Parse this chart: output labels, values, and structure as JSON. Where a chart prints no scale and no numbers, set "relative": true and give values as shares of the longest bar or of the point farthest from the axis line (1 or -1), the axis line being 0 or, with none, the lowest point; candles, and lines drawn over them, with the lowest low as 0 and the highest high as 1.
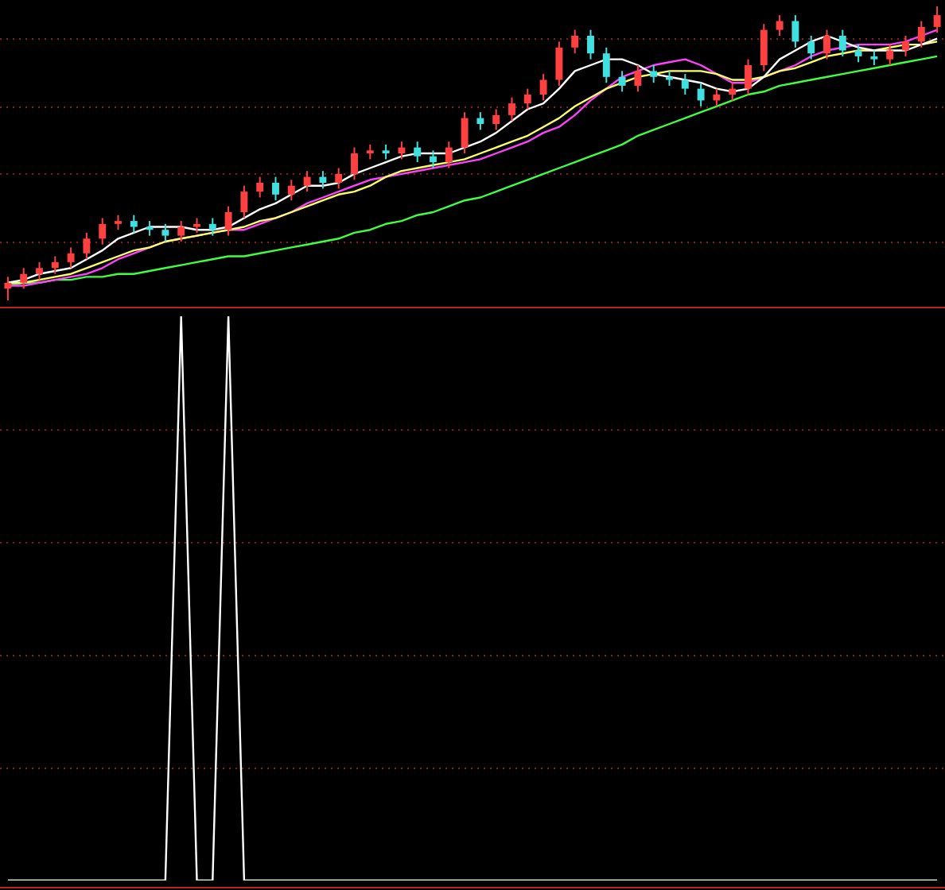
{
  "chart_data": [
    {
      "type": "candlestick",
      "relative": true,
      "ref_lines": [
        {
          "axis": "y",
          "value": 0.89,
          "color": "#8a1c1c",
          "line_style": "dotted"
        },
        {
          "axis": "y",
          "value": 0.66,
          "color": "#8a1c1c",
          "line_style": "dotted"
        },
        {
          "axis": "y",
          "value": 0.43,
          "color": "#8a1c1c",
          "line_style": "dotted"
        },
        {
          "axis": "y",
          "value": 0.2,
          "color": "#8a1c1c",
          "line_style": "dotted"
        }
      ],
      "categories": [
        null,
        null,
        null,
        null,
        null,
        null,
        null,
        null,
        null,
        null,
        null,
        null,
        null,
        null,
        null,
        null,
        null,
        null,
        null,
        null,
        null,
        null,
        null,
        null,
        null,
        null,
        null,
        null,
        null,
        null,
        null,
        null,
        null,
        null,
        null,
        null,
        null,
        null,
        null,
        null,
        null,
        null,
        null,
        null,
        null,
        null,
        null,
        null,
        null,
        null,
        null,
        null,
        null,
        null,
        null,
        null,
        null,
        null,
        null,
        null
      ],
      "ohlc": [
        [
          0.04,
          0.08,
          0,
          0.06
        ],
        [
          0.06,
          0.11,
          0.04,
          0.09
        ],
        [
          0.09,
          0.13,
          0.07,
          0.11
        ],
        [
          0.11,
          0.15,
          0.09,
          0.13
        ],
        [
          0.13,
          0.18,
          0.11,
          0.16
        ],
        [
          0.16,
          0.23,
          0.14,
          0.21
        ],
        [
          0.21,
          0.28,
          0.19,
          0.26
        ],
        [
          0.26,
          0.29,
          0.24,
          0.27
        ],
        [
          0.27,
          0.29,
          0.23,
          0.25
        ],
        [
          0.25,
          0.27,
          0.22,
          0.24
        ],
        [
          0.24,
          0.26,
          0.2,
          0.22
        ],
        [
          0.22,
          0.27,
          0.2,
          0.25
        ],
        [
          0.25,
          0.28,
          0.23,
          0.26
        ],
        [
          0.26,
          0.28,
          0.22,
          0.24
        ],
        [
          0.24,
          0.32,
          0.22,
          0.3
        ],
        [
          0.3,
          0.39,
          0.28,
          0.37
        ],
        [
          0.37,
          0.42,
          0.35,
          0.4
        ],
        [
          0.4,
          0.42,
          0.34,
          0.36
        ],
        [
          0.36,
          0.41,
          0.34,
          0.39
        ],
        [
          0.39,
          0.44,
          0.37,
          0.42
        ],
        [
          0.42,
          0.44,
          0.38,
          0.4
        ],
        [
          0.4,
          0.45,
          0.38,
          0.43
        ],
        [
          0.43,
          0.52,
          0.41,
          0.5
        ],
        [
          0.5,
          0.53,
          0.48,
          0.51
        ],
        [
          0.51,
          0.53,
          0.48,
          0.5
        ],
        [
          0.5,
          0.54,
          0.48,
          0.52
        ],
        [
          0.52,
          0.54,
          0.47,
          0.49
        ],
        [
          0.49,
          0.51,
          0.45,
          0.47
        ],
        [
          0.47,
          0.54,
          0.45,
          0.52
        ],
        [
          0.52,
          0.64,
          0.5,
          0.62
        ],
        [
          0.62,
          0.64,
          0.58,
          0.6
        ],
        [
          0.6,
          0.65,
          0.58,
          0.63
        ],
        [
          0.63,
          0.69,
          0.61,
          0.67
        ],
        [
          0.67,
          0.72,
          0.65,
          0.7
        ],
        [
          0.7,
          0.77,
          0.68,
          0.75
        ],
        [
          0.75,
          0.88,
          0.73,
          0.86
        ],
        [
          0.86,
          0.92,
          0.84,
          0.9
        ],
        [
          0.9,
          0.92,
          0.82,
          0.84
        ],
        [
          0.84,
          0.86,
          0.74,
          0.76
        ],
        [
          0.76,
          0.78,
          0.71,
          0.73
        ],
        [
          0.73,
          0.8,
          0.71,
          0.78
        ],
        [
          0.78,
          0.8,
          0.74,
          0.76
        ],
        [
          0.76,
          0.78,
          0.73,
          0.75
        ],
        [
          0.75,
          0.77,
          0.7,
          0.72
        ],
        [
          0.72,
          0.74,
          0.66,
          0.68
        ],
        [
          0.68,
          0.72,
          0.66,
          0.7
        ],
        [
          0.7,
          0.74,
          0.68,
          0.72
        ],
        [
          0.72,
          0.82,
          0.7,
          0.8
        ],
        [
          0.8,
          0.94,
          0.78,
          0.92
        ],
        [
          0.92,
          0.97,
          0.9,
          0.95
        ],
        [
          0.95,
          0.97,
          0.86,
          0.88
        ],
        [
          0.88,
          0.9,
          0.82,
          0.84
        ],
        [
          0.84,
          0.92,
          0.82,
          0.9
        ],
        [
          0.9,
          0.92,
          0.83,
          0.85
        ],
        [
          0.85,
          0.87,
          0.81,
          0.83
        ],
        [
          0.83,
          0.85,
          0.8,
          0.82
        ],
        [
          0.82,
          0.87,
          0.8,
          0.85
        ],
        [
          0.85,
          0.9,
          0.83,
          0.88
        ],
        [
          0.88,
          0.95,
          0.86,
          0.93
        ],
        [
          0.93,
          1,
          0.91,
          0.97
        ]
      ],
      "colors": [
        "#ff4040",
        "#ff4040",
        "#ff4040",
        "#ff4040",
        "#ff4040",
        "#ff4040",
        "#ff4040",
        "#ff4040",
        "#40e0e0",
        "#40e0e0",
        "#40e0e0",
        "#ff4040",
        "#ff4040",
        "#40e0e0",
        "#ff4040",
        "#ff4040",
        "#ff4040",
        "#40e0e0",
        "#ff4040",
        "#ff4040",
        "#40e0e0",
        "#ff4040",
        "#ff4040",
        "#ff4040",
        "#40e0e0",
        "#ff4040",
        "#40e0e0",
        "#40e0e0",
        "#ff4040",
        "#ff4040",
        "#40e0e0",
        "#ff4040",
        "#ff4040",
        "#ff4040",
        "#ff4040",
        "#ff4040",
        "#ff4040",
        "#40e0e0",
        "#40e0e0",
        "#40e0e0",
        "#ff4040",
        "#40e0e0",
        "#40e0e0",
        "#40e0e0",
        "#40e0e0",
        "#ff4040",
        "#ff4040",
        "#ff4040",
        "#ff4040",
        "#ff4040",
        "#40e0e0",
        "#40e0e0",
        "#ff4040",
        "#40e0e0",
        "#40e0e0",
        "#40e0e0",
        "#ff4040",
        "#ff4040",
        "#ff4040",
        "#ff4040"
      ],
      "series": [
        {
          "type": "line",
          "color": "#ffffff",
          "values": [
            0.06,
            0.07,
            0.09,
            0.1,
            0.11,
            0.14,
            0.17,
            0.21,
            0.23,
            0.25,
            0.25,
            0.25,
            0.24,
            0.24,
            0.25,
            0.28,
            0.31,
            0.33,
            0.36,
            0.39,
            0.39,
            0.4,
            0.43,
            0.45,
            0.47,
            0.49,
            0.5,
            0.5,
            0.5,
            0.52,
            0.54,
            0.57,
            0.61,
            0.65,
            0.67,
            0.72,
            0.78,
            0.8,
            0.82,
            0.82,
            0.8,
            0.77,
            0.76,
            0.75,
            0.74,
            0.72,
            0.71,
            0.72,
            0.76,
            0.82,
            0.85,
            0.88,
            0.9,
            0.88,
            0.86,
            0.85,
            0.85,
            0.85,
            0.87,
            0.89
          ]
        },
        {
          "type": "line",
          "color": "#ffff66",
          "values": [
            0.06,
            0.06,
            0.07,
            0.08,
            0.09,
            0.11,
            0.13,
            0.15,
            0.17,
            0.18,
            0.2,
            0.21,
            0.22,
            0.23,
            0.24,
            0.25,
            0.27,
            0.28,
            0.3,
            0.32,
            0.34,
            0.36,
            0.37,
            0.39,
            0.42,
            0.44,
            0.45,
            0.46,
            0.47,
            0.48,
            0.5,
            0.52,
            0.54,
            0.56,
            0.59,
            0.62,
            0.66,
            0.69,
            0.72,
            0.74,
            0.76,
            0.77,
            0.78,
            0.78,
            0.78,
            0.77,
            0.75,
            0.75,
            0.76,
            0.78,
            0.79,
            0.81,
            0.83,
            0.84,
            0.85,
            0.85,
            0.86,
            0.87,
            0.87,
            0.88
          ]
        },
        {
          "type": "line",
          "color": "#ff40ff",
          "values": [
            0.05,
            0.05,
            0.06,
            0.07,
            0.08,
            0.09,
            0.11,
            0.14,
            0.16,
            0.18,
            0.2,
            0.21,
            0.22,
            0.23,
            0.24,
            0.24,
            0.26,
            0.28,
            0.3,
            0.33,
            0.35,
            0.37,
            0.39,
            0.41,
            0.42,
            0.43,
            0.44,
            0.45,
            0.46,
            0.47,
            0.48,
            0.5,
            0.52,
            0.54,
            0.57,
            0.59,
            0.63,
            0.68,
            0.72,
            0.76,
            0.78,
            0.8,
            0.81,
            0.82,
            0.8,
            0.77,
            0.74,
            0.74,
            0.76,
            0.78,
            0.8,
            0.83,
            0.85,
            0.86,
            0.87,
            0.87,
            0.87,
            0.88,
            0.9,
            0.92
          ]
        },
        {
          "type": "line",
          "color": "#40ff40",
          "values": [
            0.05,
            0.06,
            0.06,
            0.07,
            0.07,
            0.08,
            0.08,
            0.09,
            0.09,
            0.1,
            0.11,
            0.12,
            0.13,
            0.14,
            0.15,
            0.15,
            0.16,
            0.17,
            0.18,
            0.19,
            0.2,
            0.21,
            0.23,
            0.24,
            0.26,
            0.27,
            0.29,
            0.3,
            0.32,
            0.34,
            0.35,
            0.37,
            0.39,
            0.41,
            0.43,
            0.45,
            0.47,
            0.49,
            0.51,
            0.53,
            0.56,
            0.58,
            0.6,
            0.62,
            0.64,
            0.66,
            0.68,
            0.7,
            0.71,
            0.73,
            0.74,
            0.75,
            0.76,
            0.77,
            0.78,
            0.79,
            0.8,
            0.81,
            0.82,
            0.83
          ]
        }
      ]
    },
    {
      "type": "line",
      "relative": true,
      "ref_lines": [
        {
          "axis": "y",
          "value": 0.8,
          "color": "#8a1c1c",
          "line_style": "dotted"
        },
        {
          "axis": "y",
          "value": 0.6,
          "color": "#8a1c1c",
          "line_style": "dotted"
        },
        {
          "axis": "y",
          "value": 0.4,
          "color": "#8a1c1c",
          "line_style": "dotted"
        },
        {
          "axis": "y",
          "value": 0.2,
          "color": "#8a1c1c",
          "line_style": "dotted"
        }
      ],
      "categories": [
        null,
        null,
        null,
        null,
        null,
        null,
        null,
        null,
        null,
        null,
        null,
        null,
        null,
        null,
        null,
        null,
        null,
        null,
        null,
        null,
        null,
        null,
        null,
        null,
        null,
        null,
        null,
        null,
        null,
        null,
        null,
        null,
        null,
        null,
        null,
        null,
        null,
        null,
        null,
        null,
        null,
        null,
        null,
        null,
        null,
        null,
        null,
        null,
        null,
        null,
        null,
        null,
        null,
        null,
        null,
        null,
        null,
        null,
        null,
        null
      ],
      "series": [
        {
          "color": "#ffffff",
          "values": [
            0,
            0,
            0,
            0,
            0,
            0,
            0,
            0,
            0,
            0,
            0,
            1,
            0,
            0,
            1,
            0,
            0,
            0,
            0,
            0,
            0,
            0,
            0,
            0,
            0,
            0,
            0,
            0,
            0,
            0,
            0,
            0,
            0,
            0,
            0,
            0,
            0,
            0,
            0,
            0,
            0,
            0,
            0,
            0,
            0,
            0,
            0,
            0,
            0,
            0,
            0,
            0,
            0,
            0,
            0,
            0,
            0,
            0,
            0,
            0
          ]
        }
      ]
    }
  ]
}
